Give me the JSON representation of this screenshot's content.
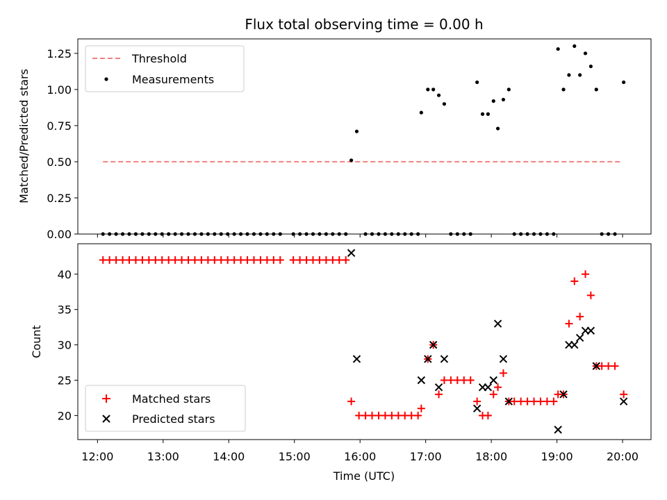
{
  "chart_data": [
    {
      "type": "scatter",
      "title": "Flux total observing time = 0.00 h",
      "xlabel": "",
      "ylabel": "Matched/Predicted stars",
      "xlim": [
        "11:42",
        "20:26"
      ],
      "ylim": [
        0.0,
        1.35
      ],
      "yticks": [
        "0.00",
        "0.25",
        "0.50",
        "0.75",
        "1.00",
        "1.25"
      ],
      "xtick_labels_visible": false,
      "legend": {
        "location": "top-left",
        "entries": [
          "Threshold",
          "Measurements"
        ]
      },
      "threshold": {
        "name": "Threshold",
        "value": 0.5,
        "x_start": "12:05",
        "x_end": "20:00",
        "color": "#f08080",
        "style": "dashed"
      },
      "series": [
        {
          "name": "Measurements",
          "color": "#000000",
          "marker": "dot",
          "points": [
            [
              "12:05",
              0
            ],
            [
              "12:11",
              0
            ],
            [
              "12:17",
              0
            ],
            [
              "12:23",
              0
            ],
            [
              "12:29",
              0
            ],
            [
              "12:35",
              0
            ],
            [
              "12:41",
              0
            ],
            [
              "12:47",
              0
            ],
            [
              "12:53",
              0
            ],
            [
              "12:59",
              0
            ],
            [
              "13:05",
              0
            ],
            [
              "13:11",
              0
            ],
            [
              "13:17",
              0
            ],
            [
              "13:23",
              0
            ],
            [
              "13:29",
              0
            ],
            [
              "13:35",
              0
            ],
            [
              "13:41",
              0
            ],
            [
              "13:47",
              0
            ],
            [
              "13:53",
              0
            ],
            [
              "13:59",
              0
            ],
            [
              "14:05",
              0
            ],
            [
              "14:11",
              0
            ],
            [
              "14:17",
              0
            ],
            [
              "14:23",
              0
            ],
            [
              "14:29",
              0
            ],
            [
              "14:35",
              0
            ],
            [
              "14:41",
              0
            ],
            [
              "14:47",
              0
            ],
            [
              "14:59",
              0
            ],
            [
              "15:05",
              0
            ],
            [
              "15:11",
              0
            ],
            [
              "15:17",
              0
            ],
            [
              "15:23",
              0
            ],
            [
              "15:29",
              0
            ],
            [
              "15:35",
              0
            ],
            [
              "15:41",
              0
            ],
            [
              "15:47",
              0
            ],
            [
              "15:52",
              0.51
            ],
            [
              "15:57",
              0.71
            ],
            [
              "16:05",
              0
            ],
            [
              "16:11",
              0
            ],
            [
              "16:17",
              0
            ],
            [
              "16:23",
              0
            ],
            [
              "16:29",
              0
            ],
            [
              "16:35",
              0
            ],
            [
              "16:41",
              0
            ],
            [
              "16:47",
              0
            ],
            [
              "16:53",
              0
            ],
            [
              "16:56",
              0.84
            ],
            [
              "17:02",
              1.0
            ],
            [
              "17:07",
              1.0
            ],
            [
              "17:12",
              0.96
            ],
            [
              "17:17",
              0.9
            ],
            [
              "17:23",
              0
            ],
            [
              "17:29",
              0
            ],
            [
              "17:35",
              0
            ],
            [
              "17:41",
              0
            ],
            [
              "17:47",
              1.05
            ],
            [
              "17:52",
              0.83
            ],
            [
              "17:57",
              0.83
            ],
            [
              "18:02",
              0.92
            ],
            [
              "18:06",
              0.73
            ],
            [
              "18:11",
              0.93
            ],
            [
              "18:16",
              1.0
            ],
            [
              "18:21",
              0
            ],
            [
              "18:27",
              0
            ],
            [
              "18:33",
              0
            ],
            [
              "18:39",
              0
            ],
            [
              "18:45",
              0
            ],
            [
              "18:51",
              0
            ],
            [
              "18:57",
              0
            ],
            [
              "19:01",
              1.28
            ],
            [
              "19:06",
              1.0
            ],
            [
              "19:11",
              1.1
            ],
            [
              "19:16",
              1.3
            ],
            [
              "19:21",
              1.1
            ],
            [
              "19:26",
              1.25
            ],
            [
              "19:31",
              1.16
            ],
            [
              "19:36",
              1.0
            ],
            [
              "19:41",
              0
            ],
            [
              "19:47",
              0
            ],
            [
              "19:53",
              0
            ],
            [
              "20:01",
              1.05
            ]
          ]
        }
      ]
    },
    {
      "type": "scatter",
      "title": "",
      "xlabel": "Time (UTC)",
      "ylabel": "Count",
      "xlim": [
        "11:42",
        "20:26"
      ],
      "ylim": [
        16.6,
        44.3
      ],
      "yticks": [
        "20",
        "25",
        "30",
        "35",
        "40"
      ],
      "xticks": [
        "12:00",
        "13:00",
        "14:00",
        "15:00",
        "16:00",
        "17:00",
        "18:00",
        "19:00",
        "20:00"
      ],
      "legend": {
        "location": "bottom-left",
        "entries": [
          "Matched stars",
          "Predicted stars"
        ]
      },
      "series": [
        {
          "name": "Matched stars",
          "color": "#ff0000",
          "marker": "plus",
          "points": [
            [
              "12:05",
              42
            ],
            [
              "12:11",
              42
            ],
            [
              "12:17",
              42
            ],
            [
              "12:23",
              42
            ],
            [
              "12:29",
              42
            ],
            [
              "12:35",
              42
            ],
            [
              "12:41",
              42
            ],
            [
              "12:47",
              42
            ],
            [
              "12:53",
              42
            ],
            [
              "12:59",
              42
            ],
            [
              "13:05",
              42
            ],
            [
              "13:11",
              42
            ],
            [
              "13:17",
              42
            ],
            [
              "13:23",
              42
            ],
            [
              "13:29",
              42
            ],
            [
              "13:35",
              42
            ],
            [
              "13:41",
              42
            ],
            [
              "13:47",
              42
            ],
            [
              "13:53",
              42
            ],
            [
              "13:59",
              42
            ],
            [
              "14:05",
              42
            ],
            [
              "14:11",
              42
            ],
            [
              "14:17",
              42
            ],
            [
              "14:23",
              42
            ],
            [
              "14:29",
              42
            ],
            [
              "14:35",
              42
            ],
            [
              "14:41",
              42
            ],
            [
              "14:47",
              42
            ],
            [
              "14:59",
              42
            ],
            [
              "15:05",
              42
            ],
            [
              "15:11",
              42
            ],
            [
              "15:17",
              42
            ],
            [
              "15:23",
              42
            ],
            [
              "15:29",
              42
            ],
            [
              "15:35",
              42
            ],
            [
              "15:41",
              42
            ],
            [
              "15:47",
              42
            ],
            [
              "15:52",
              22
            ],
            [
              "15:59",
              20
            ],
            [
              "16:05",
              20
            ],
            [
              "16:11",
              20
            ],
            [
              "16:17",
              20
            ],
            [
              "16:23",
              20
            ],
            [
              "16:29",
              20
            ],
            [
              "16:35",
              20
            ],
            [
              "16:41",
              20
            ],
            [
              "16:47",
              20
            ],
            [
              "16:53",
              20
            ],
            [
              "16:56",
              21
            ],
            [
              "17:02",
              28
            ],
            [
              "17:07",
              30
            ],
            [
              "17:12",
              23
            ],
            [
              "17:17",
              25
            ],
            [
              "17:23",
              25
            ],
            [
              "17:29",
              25
            ],
            [
              "17:35",
              25
            ],
            [
              "17:41",
              25
            ],
            [
              "17:47",
              22
            ],
            [
              "17:52",
              20
            ],
            [
              "17:57",
              20
            ],
            [
              "18:02",
              23
            ],
            [
              "18:06",
              24
            ],
            [
              "18:11",
              26
            ],
            [
              "18:16",
              22
            ],
            [
              "18:21",
              22
            ],
            [
              "18:27",
              22
            ],
            [
              "18:33",
              22
            ],
            [
              "18:39",
              22
            ],
            [
              "18:45",
              22
            ],
            [
              "18:51",
              22
            ],
            [
              "18:57",
              22
            ],
            [
              "19:01",
              23
            ],
            [
              "19:06",
              23
            ],
            [
              "19:11",
              33
            ],
            [
              "19:16",
              39
            ],
            [
              "19:21",
              34
            ],
            [
              "19:26",
              40
            ],
            [
              "19:31",
              37
            ],
            [
              "19:36",
              27
            ],
            [
              "19:41",
              27
            ],
            [
              "19:47",
              27
            ],
            [
              "19:53",
              27
            ],
            [
              "20:01",
              23
            ]
          ]
        },
        {
          "name": "Predicted stars",
          "color": "#000000",
          "marker": "x",
          "points": [
            [
              "15:52",
              43
            ],
            [
              "15:57",
              28
            ],
            [
              "16:56",
              25
            ],
            [
              "17:02",
              28
            ],
            [
              "17:07",
              30
            ],
            [
              "17:12",
              24
            ],
            [
              "17:17",
              28
            ],
            [
              "17:47",
              21
            ],
            [
              "17:52",
              24
            ],
            [
              "17:57",
              24
            ],
            [
              "18:02",
              25
            ],
            [
              "18:06",
              33
            ],
            [
              "18:11",
              28
            ],
            [
              "18:16",
              22
            ],
            [
              "19:01",
              18
            ],
            [
              "19:06",
              23
            ],
            [
              "19:11",
              30
            ],
            [
              "19:16",
              30
            ],
            [
              "19:21",
              31
            ],
            [
              "19:26",
              32
            ],
            [
              "19:31",
              32
            ],
            [
              "19:36",
              27
            ],
            [
              "20:01",
              22
            ]
          ]
        }
      ]
    }
  ]
}
